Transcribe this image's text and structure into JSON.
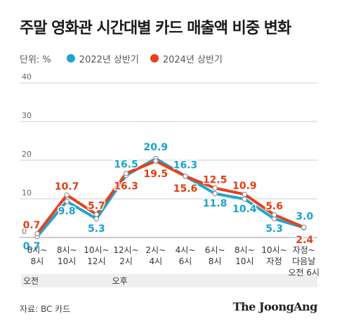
{
  "title": "주말 영화관 시간대별 카드 매출액 비중 변화",
  "legend": {
    "unit": "단위: %"
  },
  "source": "자료: BC 카드",
  "brand": "The JoongAng",
  "colors": {
    "series_2022": "#1ea6d2",
    "series_2024": "#e8401c",
    "label_2022": "#17a3d0",
    "label_2024": "#e23d13",
    "period_band": "#efefef"
  },
  "chart_data": {
    "type": "line",
    "title": "주말 영화관 시간대별 카드 매출액 비중 변화",
    "ylabel": "단위: %",
    "ylim": [
      0,
      40
    ],
    "yticks": [
      "0",
      "10",
      "20",
      "30",
      "40"
    ],
    "grid": true,
    "legend_position": "top-left",
    "categories": [
      [
        "6시~",
        "8시"
      ],
      [
        "8시~",
        "10시"
      ],
      [
        "10시~",
        "12시"
      ],
      [
        "12시~",
        "2시"
      ],
      [
        "2시~",
        "4시"
      ],
      [
        "4시~",
        "6시"
      ],
      [
        "6시~",
        "8시"
      ],
      [
        "8시~",
        "10시"
      ],
      [
        "10시~",
        "자정"
      ],
      [
        "자정~",
        "다음날",
        "오전 6시"
      ]
    ],
    "periods": [
      {
        "label": "오전",
        "start": 0,
        "end": 2
      },
      {
        "label": "오후",
        "start": 3,
        "end": 9
      }
    ],
    "series": [
      {
        "name": "2022년 상반기",
        "values": [
          0.7,
          9.8,
          5.3,
          16.5,
          20.9,
          16.3,
          11.8,
          10.4,
          5.3,
          3.0
        ]
      },
      {
        "name": "2024년 상반기",
        "values": [
          0.7,
          10.7,
          5.7,
          16.3,
          19.5,
          15.6,
          12.5,
          10.9,
          5.6,
          2.4
        ]
      }
    ]
  }
}
